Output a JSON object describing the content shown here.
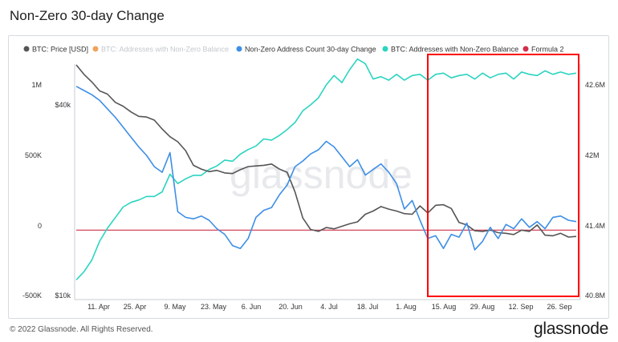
{
  "title": "Non-Zero 30-day Change",
  "footer": "© 2022 Glassnode. All Rights Reserved.",
  "brand": "glassnode",
  "watermark": "glassnode",
  "chart_data": {
    "type": "line",
    "legend_position": "top",
    "grid": false,
    "x_ticks": [
      "11. Apr",
      "25. Apr",
      "9. May",
      "23. May",
      "6. Jun",
      "20. Jun",
      "4. Jul",
      "18. Jul",
      "1. Aug",
      "15. Aug",
      "29. Aug",
      "12. Sep",
      "26. Sep"
    ],
    "left_ticks": [
      "1M",
      "500K",
      "0",
      "-500K"
    ],
    "price_ticks": [
      "$40k",
      "$10k"
    ],
    "right_ticks": [
      "42.6M",
      "42M",
      "41.4M",
      "40.8M"
    ],
    "y_left_range": [
      -500000,
      1000000
    ],
    "y_right_range": [
      40800000,
      42600000
    ],
    "series": [
      {
        "name": "BTC: Price [USD]",
        "color": "#555555",
        "axis": "price",
        "hidden": false,
        "values": [
          46300,
          44800,
          43600,
          42200,
          41700,
          40400,
          39800,
          38900,
          38200,
          38100,
          37600,
          36200,
          35000,
          34200,
          32800,
          30500,
          29900,
          29500,
          29700,
          29300,
          29200,
          29800,
          30300,
          30400,
          30500,
          30700,
          29900,
          29400,
          26300,
          22200,
          20400,
          20100,
          20700,
          20500,
          20900,
          21300,
          21600,
          22800,
          23300,
          24000,
          23600,
          23300,
          22900,
          22800,
          24100,
          23000,
          24200,
          24300,
          23700,
          21500,
          21100,
          20200,
          20100,
          20300,
          19900,
          19800,
          19600,
          20300,
          20100,
          21100,
          19500,
          19400,
          19800,
          19200,
          19300
        ]
      },
      {
        "name": "BTC: Addresses with Non-Zero Balance",
        "color": "#f2a25a",
        "axis": "right",
        "hidden": true,
        "values": []
      },
      {
        "name": "Non-Zero Address Count 30-day Change",
        "color": "#3d8fe6",
        "axis": "left",
        "hidden": false,
        "values": [
          990000,
          960000,
          930000,
          890000,
          830000,
          770000,
          700000,
          630000,
          560000,
          500000,
          420000,
          380000,
          520000,
          100000,
          60000,
          50000,
          70000,
          40000,
          -20000,
          -60000,
          -140000,
          -160000,
          -90000,
          60000,
          110000,
          130000,
          220000,
          290000,
          420000,
          460000,
          510000,
          540000,
          600000,
          560000,
          490000,
          420000,
          470000,
          360000,
          400000,
          440000,
          380000,
          300000,
          120000,
          180000,
          40000,
          -90000,
          -70000,
          -160000,
          -60000,
          -80000,
          20000,
          -170000,
          -110000,
          -10000,
          -90000,
          10000,
          -20000,
          50000,
          -10000,
          30000,
          -20000,
          60000,
          70000,
          40000,
          30000
        ]
      },
      {
        "name": "BTC: Addresses with Non-Zero Balance",
        "color": "#2bd4c0",
        "axis": "right",
        "hidden": false,
        "values": [
          40940000,
          41010000,
          41110000,
          41270000,
          41380000,
          41470000,
          41560000,
          41600000,
          41620000,
          41650000,
          41650000,
          41690000,
          41840000,
          41760000,
          41800000,
          41830000,
          41830000,
          41880000,
          41910000,
          41960000,
          41950000,
          42010000,
          42050000,
          42080000,
          42140000,
          42130000,
          42170000,
          42220000,
          42280000,
          42380000,
          42430000,
          42490000,
          42600000,
          42680000,
          42620000,
          42730000,
          42820000,
          42780000,
          42650000,
          42670000,
          42640000,
          42690000,
          42640000,
          42680000,
          42690000,
          42640000,
          42690000,
          42700000,
          42660000,
          42680000,
          42690000,
          42650000,
          42700000,
          42660000,
          42690000,
          42700000,
          42650000,
          42710000,
          42690000,
          42680000,
          42720000,
          42690000,
          42710000,
          42690000,
          42700000
        ]
      },
      {
        "name": "Formula 2",
        "color": "#d0304a",
        "axis": "left",
        "hidden": false,
        "values": [
          -30000,
          -30000
        ]
      }
    ]
  }
}
